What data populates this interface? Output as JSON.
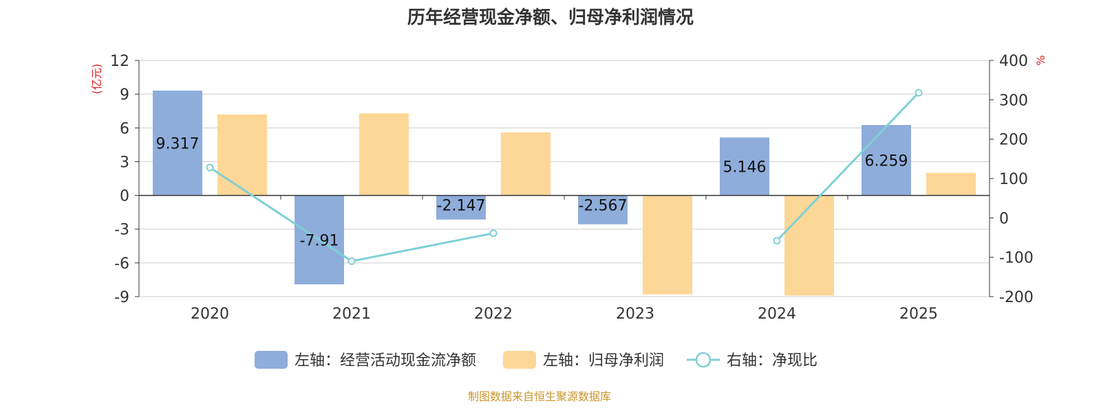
{
  "chart_data": {
    "type": "bar",
    "title": "历年经营现金净额、归母净利润情况",
    "categories": [
      "2020",
      "2021",
      "2022",
      "2023",
      "2024",
      "2025"
    ],
    "series": [
      {
        "name": "左轴：经营活动现金流净额",
        "axis": "left",
        "type": "bar",
        "color": "#8eaddb",
        "values": [
          9.317,
          -7.91,
          -2.147,
          -2.567,
          5.146,
          6.259
        ],
        "labels": [
          "9.317",
          "-7.91",
          "-2.147",
          "-2.567",
          "5.146",
          "6.259"
        ]
      },
      {
        "name": "左轴：归母净利润",
        "axis": "left",
        "type": "bar",
        "color": "#fdd797",
        "values": [
          7.2,
          7.3,
          5.6,
          -8.8,
          -8.9,
          2.0
        ]
      },
      {
        "name": "右轴：净现比",
        "axis": "right",
        "type": "line",
        "color": "#7fd0d6",
        "values": [
          128,
          -110,
          -39,
          null,
          -58,
          318
        ]
      }
    ],
    "left_axis": {
      "unit": "(亿元)",
      "ticks": [
        12,
        9,
        6,
        3,
        0,
        -3,
        -6,
        -9
      ],
      "ylim": [
        -9,
        12
      ]
    },
    "right_axis": {
      "unit": "%",
      "ticks": [
        400,
        300,
        200,
        100,
        0,
        -100,
        -200
      ],
      "ylim": [
        -200,
        400
      ]
    },
    "grid": true,
    "legend_position": "bottom"
  },
  "source": "制图数据来自恒生聚源数据库"
}
